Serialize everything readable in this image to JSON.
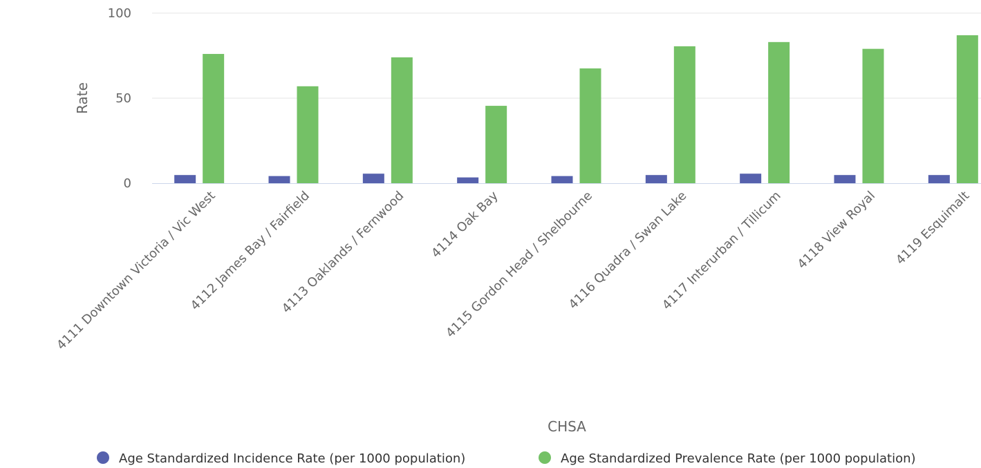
{
  "chart_data": {
    "type": "bar",
    "title": "",
    "xlabel": "CHSA",
    "ylabel": "Rate",
    "ylim": [
      0,
      100
    ],
    "yticks": [
      0,
      50,
      100
    ],
    "grid": true,
    "legend_position": "bottom",
    "categories": [
      "4111 Downtown Victoria / Vic West",
      "4112 James Bay / Fairfield",
      "4113 Oaklands / Fernwood",
      "4114 Oak Bay",
      "4115 Gordon Head / Shelbourne",
      "4116 Quadra / Swan Lake",
      "4117 Interurban / Tillicum",
      "4118 View Royal",
      "4119 Esquimalt"
    ],
    "series": [
      {
        "name": "Age Standardized Incidence Rate (per 1000 population)",
        "color": "#5661ad",
        "values": [
          4.8,
          4.2,
          5.6,
          3.4,
          4.2,
          4.8,
          5.6,
          4.8,
          4.8
        ]
      },
      {
        "name": "Age Standardized Prevalence Rate (per 1000 population)",
        "color": "#74c166",
        "values": [
          76,
          57,
          74,
          45.5,
          67.5,
          80.5,
          83,
          79,
          87
        ]
      }
    ]
  }
}
